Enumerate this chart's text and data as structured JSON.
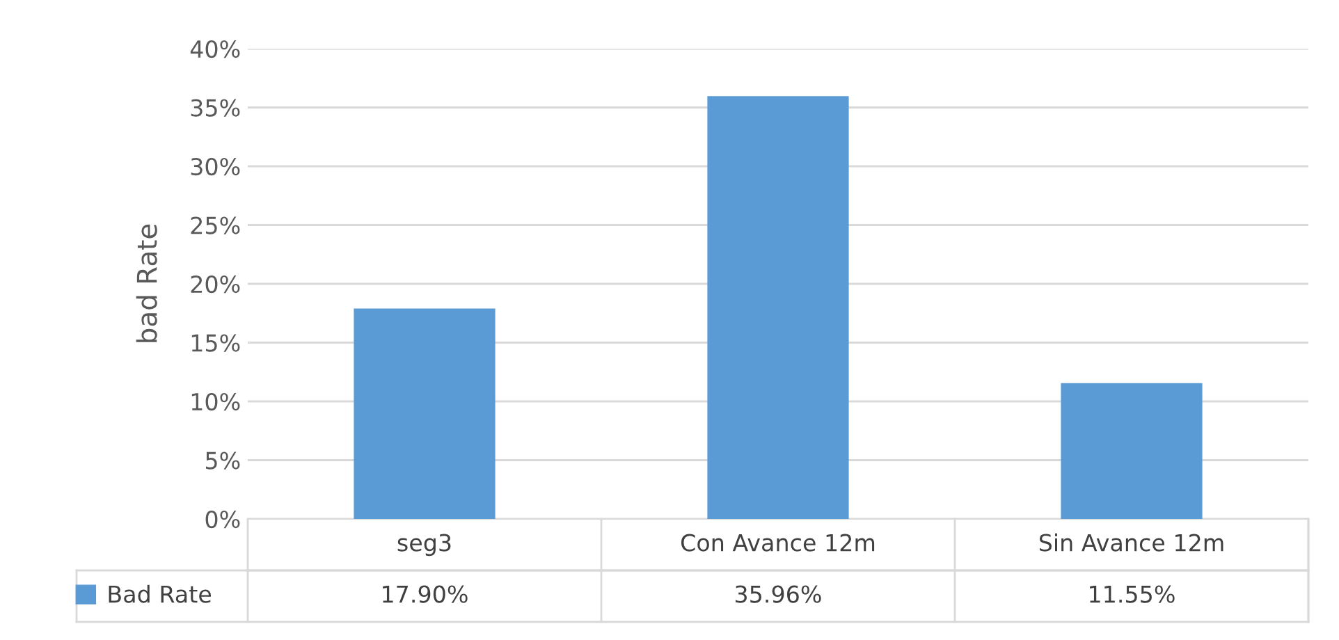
{
  "chart_data": {
    "type": "bar",
    "ylabel": "bad Rate",
    "categories": [
      "seg3",
      "Con Avance 12m",
      "Sin Avance 12m"
    ],
    "series": [
      {
        "name": "Bad Rate",
        "color": "#5b9bd5",
        "values": [
          17.9,
          35.96,
          11.55
        ],
        "value_labels": [
          "17.90%",
          "35.96%",
          "11.55%"
        ]
      }
    ],
    "ylim": [
      0,
      40
    ],
    "yticks": [
      {
        "value": 0,
        "label": "0%"
      },
      {
        "value": 5,
        "label": "5%"
      },
      {
        "value": 10,
        "label": "10%"
      },
      {
        "value": 15,
        "label": "15%"
      },
      {
        "value": 20,
        "label": "20%"
      },
      {
        "value": 25,
        "label": "25%"
      },
      {
        "value": 30,
        "label": "30%"
      },
      {
        "value": 35,
        "label": "35%"
      },
      {
        "value": 40,
        "label": "40%"
      }
    ],
    "grid": "y",
    "legend": "bottom"
  }
}
